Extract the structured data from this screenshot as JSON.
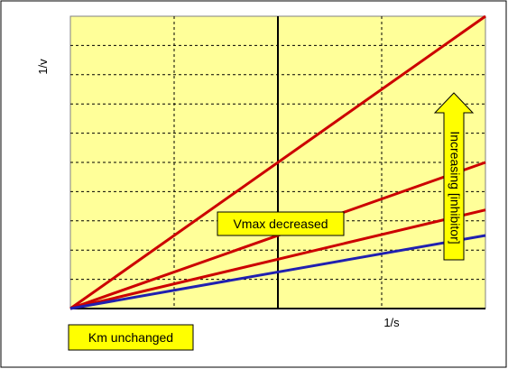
{
  "chart_data": {
    "type": "line",
    "x_axis_label": "1/s",
    "y_axis_label": "1/v",
    "xlim": [
      -1,
      1
    ],
    "ylim": [
      0,
      8
    ],
    "grid": true,
    "series": [
      {
        "name": "",
        "color": "#cc0000",
        "x": [
          -1,
          1
        ],
        "y": [
          0,
          8.0
        ]
      },
      {
        "name": "",
        "color": "#cc0000",
        "x": [
          -1,
          1
        ],
        "y": [
          0,
          4.0
        ]
      },
      {
        "name": "",
        "color": "#cc0000",
        "x": [
          -1,
          1
        ],
        "y": [
          0,
          2.7
        ]
      },
      {
        "name": "",
        "color": "#2020b0",
        "x": [
          -1,
          1
        ],
        "y": [
          0,
          2.0
        ]
      }
    ],
    "annotations": {
      "vmax": "Vmax decreased",
      "km": "Km unchanged",
      "inhibitor": "Increasing [inhibitor]"
    }
  },
  "colors": {
    "plot_bg": "#ffff99",
    "annotation_bg": "#ffff00",
    "inhibited_line": "#cc0000",
    "control_line": "#2020b0"
  }
}
